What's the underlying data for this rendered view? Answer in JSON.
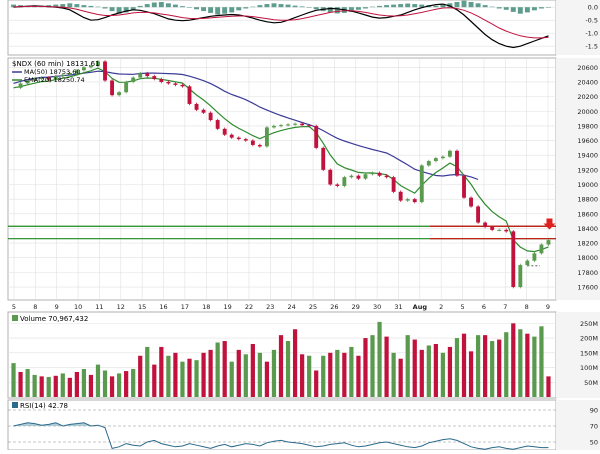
{
  "chart_data": {
    "type": "candlestick",
    "title": "$NDX (60 min) 18131.61",
    "legend": {
      "symbol": "$NDX (60 min) 18131.61",
      "ma50": "MA(50) 18753.60",
      "ema20": "EMA(20) 18250.74"
    },
    "colors": {
      "up": "#5a9a4e",
      "down": "#c0123c",
      "ma50": "#3b3b98",
      "ema20": "#2e8b2e",
      "support_line": "#1a8a1a",
      "resistance_line": "#d01010",
      "macd_hist": "#5e9c8e",
      "grid": "#e0e0e0",
      "panel_bg": "#ffffff",
      "axis_bg": "#f0f0f0"
    },
    "x_axis": {
      "tick_labels": [
        "5",
        "8",
        "9",
        "10",
        "11",
        "12",
        "15",
        "16",
        "17",
        "18",
        "19",
        "22",
        "23",
        "24",
        "25",
        "26",
        "29",
        "30",
        "31",
        "Aug",
        "2",
        "5",
        "6",
        "7",
        "8",
        "9"
      ],
      "month_label": "Aug"
    },
    "y_axis": {
      "tick_labels": [
        "20600",
        "20400",
        "20200",
        "20000",
        "19800",
        "19600",
        "19400",
        "19200",
        "19000",
        "18800",
        "18600",
        "18400",
        "18200",
        "18000",
        "17800",
        "17600"
      ],
      "ylim": [
        17450,
        20700
      ]
    },
    "horizontal_lines": [
      {
        "name": "upper-line",
        "value": 18430,
        "color": "#1a8a1a"
      },
      {
        "name": "middle-line",
        "value": 18260,
        "color": "#1a8a1a"
      },
      {
        "name": "red-line",
        "value": 18430,
        "color": "#d01010"
      },
      {
        "name": "red-line-2",
        "value": 18260,
        "color": "#d01010"
      }
    ],
    "dotted_line": {
      "value": 17890
    },
    "arrow_marker": {
      "at_value": 18290
    },
    "price_path": [
      [
        0,
        20320
      ],
      [
        1,
        20380
      ],
      [
        2,
        20420
      ],
      [
        3,
        20440
      ],
      [
        4,
        20460
      ],
      [
        5,
        20430
      ],
      [
        6,
        20480
      ],
      [
        7,
        20500
      ],
      [
        8,
        20520
      ],
      [
        9,
        20560
      ],
      [
        10,
        20600
      ],
      [
        11,
        20620
      ],
      [
        12,
        20680
      ],
      [
        13,
        20420
      ],
      [
        14,
        20220
      ],
      [
        15,
        20260
      ],
      [
        16,
        20400
      ],
      [
        17,
        20460
      ],
      [
        18,
        20520
      ],
      [
        19,
        20480
      ],
      [
        20,
        20440
      ],
      [
        21,
        20400
      ],
      [
        22,
        20380
      ],
      [
        23,
        20360
      ],
      [
        24,
        20340
      ],
      [
        25,
        20100
      ],
      [
        26,
        20020
      ],
      [
        27,
        19980
      ],
      [
        28,
        19880
      ],
      [
        29,
        19760
      ],
      [
        30,
        19680
      ],
      [
        31,
        19640
      ],
      [
        32,
        19620
      ],
      [
        33,
        19600
      ],
      [
        34,
        19540
      ],
      [
        35,
        19520
      ],
      [
        36,
        19780
      ],
      [
        37,
        19800
      ],
      [
        38,
        19810
      ],
      [
        39,
        19820
      ],
      [
        40,
        19830
      ],
      [
        41,
        19810
      ],
      [
        42,
        19800
      ],
      [
        43,
        19500
      ],
      [
        44,
        19200
      ],
      [
        45,
        19000
      ],
      [
        46,
        18980
      ],
      [
        47,
        19100
      ],
      [
        48,
        19120
      ],
      [
        49,
        19080
      ],
      [
        50,
        19140
      ],
      [
        51,
        19160
      ],
      [
        52,
        19120
      ],
      [
        53,
        19100
      ],
      [
        54,
        18900
      ],
      [
        55,
        18780
      ],
      [
        56,
        18800
      ],
      [
        57,
        18760
      ],
      [
        58,
        19260
      ],
      [
        59,
        19320
      ],
      [
        60,
        19360
      ],
      [
        61,
        19380
      ],
      [
        62,
        19460
      ],
      [
        63,
        19120
      ],
      [
        64,
        18820
      ],
      [
        65,
        18700
      ],
      [
        66,
        18480
      ],
      [
        67,
        18420
      ],
      [
        68,
        18380
      ],
      [
        69,
        18380
      ],
      [
        70,
        18360
      ],
      [
        71,
        17600
      ],
      [
        72,
        17900
      ],
      [
        73,
        17960
      ],
      [
        74,
        18060
      ],
      [
        75,
        18180
      ],
      [
        76,
        18240
      ]
    ],
    "volume": {
      "label": "Volume 70,967,432",
      "tick_labels": [
        "250M",
        "200M",
        "150M",
        "100M",
        "50M"
      ],
      "ylim": [
        0,
        275
      ],
      "values": [
        115,
        85,
        95,
        75,
        70,
        68,
        72,
        80,
        65,
        85,
        95,
        75,
        110,
        90,
        70,
        80,
        88,
        95,
        140,
        170,
        110,
        170,
        140,
        150,
        120,
        130,
        125,
        150,
        160,
        185,
        190,
        120,
        160,
        145,
        180,
        150,
        120,
        160,
        210,
        190,
        230,
        145,
        140,
        90,
        140,
        150,
        160,
        150,
        170,
        140,
        200,
        210,
        255,
        205,
        150,
        130,
        210,
        195,
        160,
        175,
        180,
        150,
        170,
        200,
        215,
        155,
        210,
        210,
        190,
        195,
        220,
        250,
        230,
        215,
        205,
        240,
        70
      ],
      "up_flags": [
        1,
        0,
        1,
        1,
        0,
        1,
        0,
        1,
        0,
        0,
        1,
        0,
        1,
        1,
        0,
        1,
        0,
        1,
        0,
        1,
        0,
        0,
        1,
        0,
        1,
        0,
        1,
        0,
        0,
        1,
        0,
        1,
        0,
        1,
        0,
        1,
        0,
        1,
        0,
        1,
        0,
        0,
        1,
        0,
        1,
        0,
        1,
        0,
        1,
        0,
        0,
        1,
        1,
        0,
        1,
        0,
        1,
        0,
        0,
        1,
        0,
        1,
        0,
        1,
        0,
        0,
        1,
        0,
        1,
        0,
        1,
        0,
        1,
        0,
        1,
        1,
        0
      ]
    },
    "rsi": {
      "label": "RSI(14) 42.78",
      "tick_labels": [
        "90",
        "70",
        "50"
      ],
      "ylim": [
        40,
        100
      ],
      "levels": [
        70,
        50
      ],
      "values": [
        70,
        72,
        74,
        73,
        71,
        72,
        74,
        70,
        72,
        73,
        74,
        70,
        71,
        68,
        42,
        44,
        48,
        46,
        45,
        50,
        52,
        48,
        46,
        44,
        45,
        48,
        46,
        44,
        42,
        45,
        47,
        44,
        46,
        48,
        47,
        45,
        49,
        51,
        52,
        50,
        49,
        48,
        46,
        44,
        45,
        47,
        48,
        49,
        46,
        44,
        45,
        47,
        49,
        50,
        48,
        46,
        44,
        43,
        45,
        49,
        51,
        53,
        54,
        52,
        48,
        44,
        42,
        41,
        43,
        44,
        42,
        41,
        43,
        45,
        44,
        43,
        43
      ]
    },
    "macd": {
      "tick_labels": [
        "0.0",
        "-0.5",
        "-1.0",
        "-1.5"
      ],
      "ylim": [
        -1.8,
        0.2
      ],
      "hist": [
        0.1,
        0.08,
        0.05,
        0.03,
        0.05,
        0.08,
        0.1,
        0.12,
        0.15,
        0.12,
        0.08,
        0.05,
        0.02,
        -0.05,
        -0.15,
        -0.25,
        -0.2,
        -0.1,
        0.05,
        0.12,
        0.18,
        0.2,
        0.15,
        0.1,
        0.04,
        -0.02,
        -0.08,
        -0.15,
        -0.22,
        -0.28,
        -0.25,
        -0.2,
        -0.12,
        -0.05,
        0.02,
        0.08,
        0.12,
        0.15,
        0.12,
        0.1,
        0.06,
        0.03,
        -0.02,
        -0.08,
        -0.15,
        -0.2,
        -0.24,
        -0.22,
        -0.18,
        -0.1,
        -0.05,
        0.02,
        0.05,
        0.08,
        0.1,
        0.12,
        0.14,
        0.12,
        0.1,
        0.08,
        0.05,
        0.1,
        0.15,
        0.2,
        0.25,
        0.2,
        0.15,
        0.08,
        0.02,
        -0.05,
        -0.1,
        -0.18,
        -0.25,
        -0.2,
        -0.12,
        -0.05,
        0.0
      ],
      "macd_line": [
        0.0,
        0.02,
        0.04,
        0.05,
        0.04,
        0.02,
        0.0,
        -0.03,
        -0.1,
        -0.25,
        -0.4,
        -0.5,
        -0.48,
        -0.4,
        -0.3,
        -0.22,
        -0.15,
        -0.1,
        -0.12,
        -0.18,
        -0.25,
        -0.35,
        -0.45,
        -0.5,
        -0.52,
        -0.5,
        -0.45,
        -0.4,
        -0.35,
        -0.32,
        -0.3,
        -0.28,
        -0.3,
        -0.35,
        -0.42,
        -0.5,
        -0.56,
        -0.6,
        -0.58,
        -0.5,
        -0.4,
        -0.3,
        -0.2,
        -0.12,
        -0.08,
        -0.05,
        -0.06,
        -0.1,
        -0.15,
        -0.22,
        -0.3,
        -0.38,
        -0.42,
        -0.4,
        -0.35,
        -0.3,
        -0.2,
        -0.1,
        -0.02,
        0.05,
        0.1,
        0.12,
        0.05,
        -0.1,
        -0.3,
        -0.55,
        -0.8,
        -1.05,
        -1.25,
        -1.4,
        -1.5,
        -1.55,
        -1.5,
        -1.4,
        -1.3,
        -1.2,
        -1.1
      ],
      "signal_line": [
        0.02,
        0.02,
        0.03,
        0.03,
        0.03,
        0.02,
        0.01,
        0.0,
        -0.03,
        -0.08,
        -0.15,
        -0.22,
        -0.28,
        -0.32,
        -0.32,
        -0.3,
        -0.26,
        -0.22,
        -0.2,
        -0.2,
        -0.22,
        -0.26,
        -0.3,
        -0.35,
        -0.4,
        -0.43,
        -0.44,
        -0.43,
        -0.41,
        -0.39,
        -0.37,
        -0.35,
        -0.34,
        -0.34,
        -0.36,
        -0.4,
        -0.44,
        -0.48,
        -0.5,
        -0.5,
        -0.48,
        -0.44,
        -0.38,
        -0.32,
        -0.26,
        -0.2,
        -0.16,
        -0.14,
        -0.14,
        -0.16,
        -0.2,
        -0.25,
        -0.3,
        -0.33,
        -0.34,
        -0.33,
        -0.3,
        -0.25,
        -0.2,
        -0.14,
        -0.08,
        -0.03,
        -0.02,
        -0.05,
        -0.12,
        -0.22,
        -0.35,
        -0.5,
        -0.65,
        -0.8,
        -0.92,
        -1.02,
        -1.1,
        -1.15,
        -1.18,
        -1.18,
        -1.16
      ]
    }
  }
}
